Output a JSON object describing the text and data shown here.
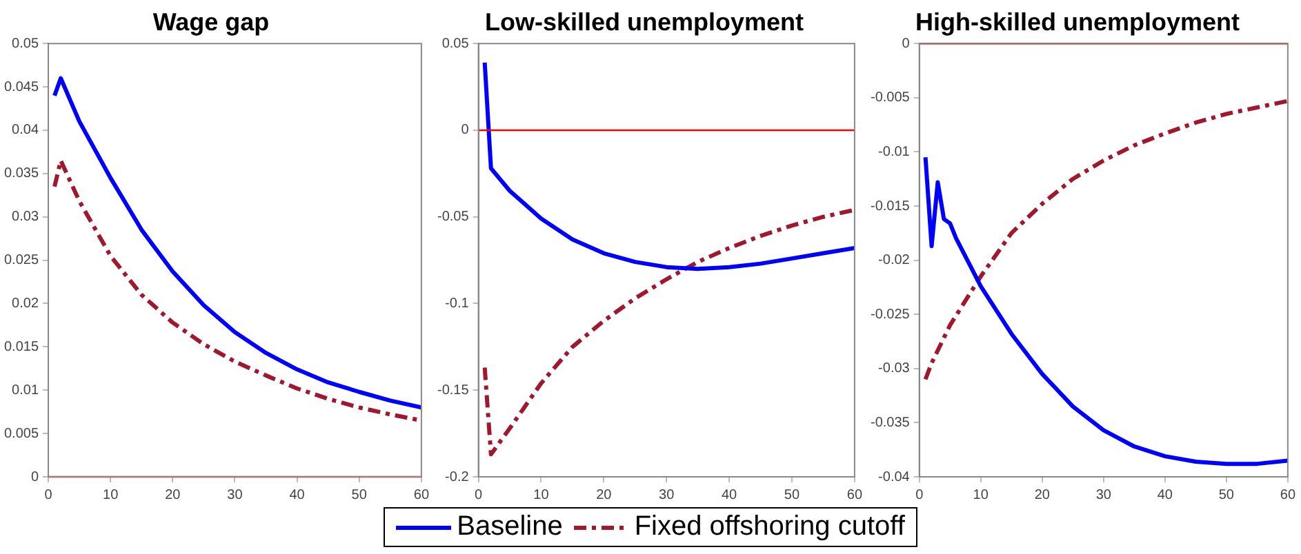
{
  "chart_data": [
    {
      "type": "line",
      "title": "Wage gap",
      "xlim": [
        0,
        60
      ],
      "xticks": [
        0,
        10,
        20,
        30,
        40,
        50,
        60
      ],
      "ylim": [
        0,
        0.05
      ],
      "yticks": [
        0,
        0.005,
        0.01,
        0.015,
        0.02,
        0.025,
        0.03,
        0.035,
        0.04,
        0.045,
        0.05
      ],
      "grid": false,
      "marker": "none",
      "ref_lines": [
        {
          "axis": "y",
          "value": 0,
          "color": "#ff0000"
        }
      ],
      "series": [
        {
          "color": "#0000ff",
          "line_style": "solid",
          "x": [
            1,
            2,
            5,
            10,
            15,
            20,
            25,
            30,
            35,
            40,
            45,
            50,
            55,
            60
          ],
          "values": [
            0.044,
            0.046,
            0.041,
            0.0345,
            0.0285,
            0.0237,
            0.0198,
            0.0167,
            0.0143,
            0.0124,
            0.0109,
            0.0098,
            0.0088,
            0.008
          ]
        },
        {
          "color": "#a0182e",
          "line_style": "dashed",
          "x": [
            1,
            2,
            5,
            10,
            15,
            20,
            25,
            30,
            35,
            40,
            45,
            50,
            55,
            60
          ],
          "values": [
            0.0335,
            0.0365,
            0.0318,
            0.0255,
            0.021,
            0.0178,
            0.0153,
            0.0133,
            0.0117,
            0.0102,
            0.009,
            0.008,
            0.0072,
            0.0065
          ]
        }
      ]
    },
    {
      "type": "line",
      "title": "Low-skilled unemployment",
      "xlim": [
        0,
        60
      ],
      "xticks": [
        0,
        10,
        20,
        30,
        40,
        50,
        60
      ],
      "ylim": [
        -0.2,
        0.05
      ],
      "yticks": [
        -0.2,
        -0.15,
        -0.1,
        -0.05,
        0,
        0.05
      ],
      "grid": false,
      "legend": "bottom",
      "marker": "none",
      "ref_lines": [
        {
          "axis": "y",
          "value": 0,
          "color": "#ff0000"
        }
      ],
      "series": [
        {
          "name": "Baseline",
          "color": "#0000ff",
          "line_style": "solid",
          "x": [
            1,
            2,
            5,
            10,
            15,
            20,
            25,
            30,
            35,
            40,
            45,
            50,
            55,
            60
          ],
          "values": [
            0.039,
            -0.022,
            -0.035,
            -0.051,
            -0.063,
            -0.071,
            -0.076,
            -0.079,
            -0.08,
            -0.079,
            -0.077,
            -0.074,
            -0.071,
            -0.068
          ]
        },
        {
          "name": "Fixed offshoring cutoff",
          "color": "#a0182e",
          "line_style": "dashed",
          "x": [
            1,
            2,
            5,
            10,
            15,
            20,
            25,
            30,
            33,
            35,
            40,
            45,
            50,
            55,
            60
          ],
          "values": [
            -0.137,
            -0.187,
            -0.172,
            -0.146,
            -0.125,
            -0.11,
            -0.097,
            -0.086,
            -0.08,
            -0.076,
            -0.068,
            -0.061,
            -0.055,
            -0.05,
            -0.046
          ]
        }
      ]
    },
    {
      "type": "line",
      "title": "High-skilled unemployment",
      "xlim": [
        0,
        60
      ],
      "xticks": [
        0,
        10,
        20,
        30,
        40,
        50,
        60
      ],
      "ylim": [
        -0.04,
        0
      ],
      "yticks": [
        -0.04,
        -0.035,
        -0.03,
        -0.025,
        -0.02,
        -0.015,
        -0.01,
        -0.005,
        0
      ],
      "grid": false,
      "marker": "none",
      "ref_lines": [
        {
          "axis": "y",
          "value": 0,
          "color": "#ff0000"
        }
      ],
      "series": [
        {
          "color": "#0000ff",
          "line_style": "solid",
          "x": [
            1,
            2,
            3,
            4,
            5,
            6,
            8,
            10,
            15,
            20,
            25,
            30,
            35,
            40,
            45,
            50,
            53,
            55,
            60
          ],
          "values": [
            -0.0105,
            -0.0187,
            -0.0128,
            -0.0162,
            -0.0166,
            -0.018,
            -0.0202,
            -0.0224,
            -0.0268,
            -0.0305,
            -0.0335,
            -0.0357,
            -0.0372,
            -0.0381,
            -0.0386,
            -0.0388,
            -0.0388,
            -0.0388,
            -0.0385
          ]
        },
        {
          "color": "#a0182e",
          "line_style": "dashed",
          "x": [
            1,
            2,
            5,
            10,
            15,
            20,
            25,
            30,
            35,
            40,
            45,
            50,
            55,
            60
          ],
          "values": [
            -0.031,
            -0.0295,
            -0.026,
            -0.0215,
            -0.0175,
            -0.0148,
            -0.0125,
            -0.0108,
            -0.0094,
            -0.0083,
            -0.0073,
            -0.0065,
            -0.0059,
            -0.0053
          ]
        }
      ]
    }
  ]
}
